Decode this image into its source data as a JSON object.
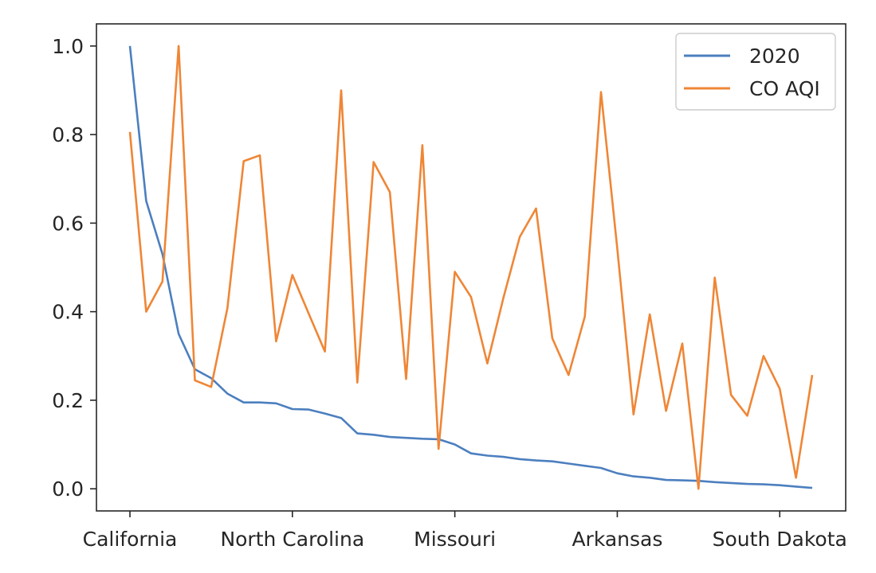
{
  "chart_data": {
    "type": "line",
    "title": "",
    "xlabel": "",
    "ylabel": "",
    "ylim": [
      -0.05,
      1.05
    ],
    "yticks": [
      0.0,
      0.2,
      0.4,
      0.6,
      0.8,
      1.0
    ],
    "ytick_labels": [
      "0.0",
      "0.2",
      "0.4",
      "0.6",
      "0.8",
      "1.0"
    ],
    "xtick_positions": [
      0,
      10,
      20,
      30,
      40
    ],
    "xtick_labels": [
      "California",
      "North Carolina",
      "Missouri",
      "Arkansas",
      "South Dakota"
    ],
    "x_count": 43,
    "grid": false,
    "legend": "top-right",
    "series": [
      {
        "name": "2020",
        "color": "#4c7fbf",
        "values": [
          1.0,
          0.65,
          0.53,
          0.35,
          0.27,
          0.25,
          0.215,
          0.195,
          0.195,
          0.193,
          0.18,
          0.179,
          0.17,
          0.16,
          0.125,
          0.122,
          0.117,
          0.115,
          0.113,
          0.112,
          0.1,
          0.08,
          0.075,
          0.072,
          0.067,
          0.064,
          0.062,
          0.057,
          0.052,
          0.047,
          0.035,
          0.028,
          0.025,
          0.02,
          0.019,
          0.018,
          0.015,
          0.013,
          0.011,
          0.01,
          0.008,
          0.005,
          0.002
        ]
      },
      {
        "name": "CO AQI",
        "color": "#ef8636",
        "values": [
          0.806,
          0.4,
          0.468,
          1.0,
          0.245,
          0.23,
          0.408,
          0.74,
          0.753,
          0.333,
          0.483,
          0.396,
          0.31,
          0.9,
          0.24,
          0.738,
          0.67,
          0.248,
          0.776,
          0.09,
          0.49,
          0.433,
          0.283,
          0.433,
          0.569,
          0.633,
          0.34,
          0.257,
          0.389,
          0.896,
          0.543,
          0.168,
          0.394,
          0.176,
          0.328,
          0.0,
          0.477,
          0.212,
          0.165,
          0.3,
          0.226,
          0.025,
          0.257
        ]
      }
    ]
  }
}
